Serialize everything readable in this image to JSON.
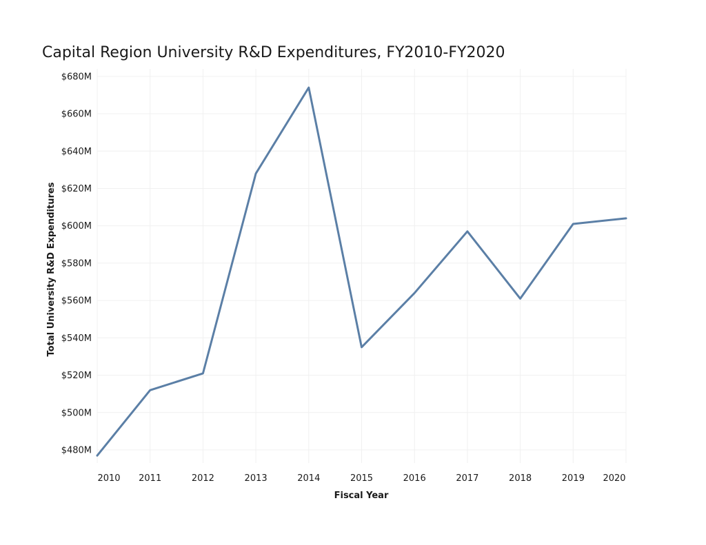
{
  "chart_data": {
    "type": "line",
    "title": "Capital Region University R&D Expenditures, FY2010-FY2020",
    "xlabel": "Fiscal Year",
    "ylabel": "Total University R&D Expenditures",
    "x": [
      2010,
      2011,
      2012,
      2013,
      2014,
      2015,
      2016,
      2017,
      2018,
      2019,
      2020
    ],
    "x_tick_labels": [
      "2010",
      "2011",
      "2012",
      "2013",
      "2014",
      "2015",
      "2016",
      "2017",
      "2018",
      "2019",
      "2020"
    ],
    "y_ticks": [
      480,
      500,
      520,
      540,
      560,
      580,
      600,
      620,
      640,
      660,
      680
    ],
    "y_tick_labels": [
      "$480M",
      "$500M",
      "$520M",
      "$540M",
      "$560M",
      "$580M",
      "$600M",
      "$620M",
      "$640M",
      "$660M",
      "$680M"
    ],
    "series": [
      {
        "values": [
          477,
          512,
          521,
          628,
          674,
          535,
          564,
          597,
          561,
          601,
          604
        ],
        "color": "#5b7fa6"
      }
    ],
    "ylim": [
      473,
      684
    ],
    "xlim": [
      2010,
      2020
    ],
    "grid": true
  }
}
